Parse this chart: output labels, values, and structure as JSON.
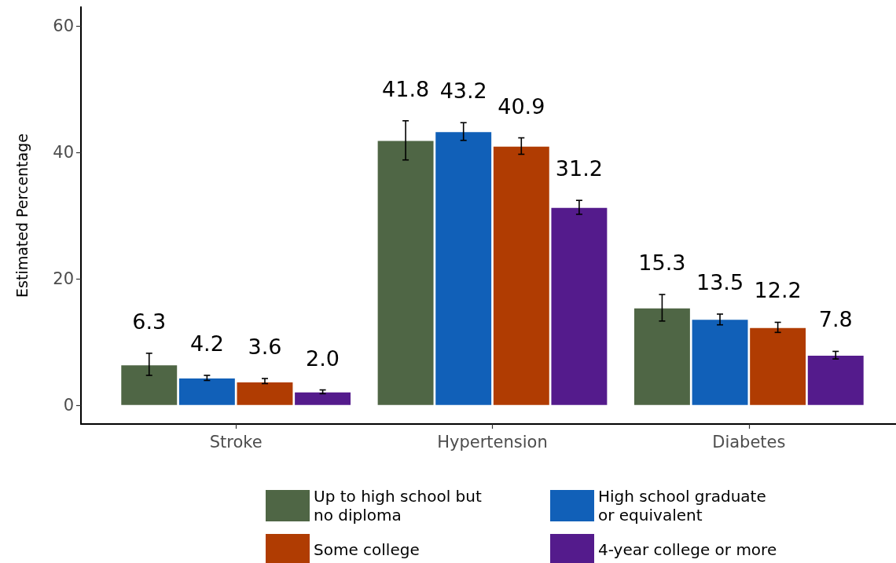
{
  "chart_data": {
    "type": "bar",
    "ylabel": "Estimated Percentage",
    "categories": [
      "Stroke",
      "Hypertension",
      "Diabetes"
    ],
    "series": [
      {
        "name": "Up to high school but no diploma",
        "color": "#4f6645",
        "values": [
          6.3,
          41.8,
          15.3
        ],
        "errors": [
          [
            4.7,
            8.2
          ],
          [
            38.8,
            45.0
          ],
          [
            13.3,
            17.5
          ]
        ],
        "value_labels": [
          "6.3",
          "41.8",
          "15.3"
        ]
      },
      {
        "name": "High school graduate or equivalent",
        "color": "#1160b8",
        "values": [
          4.2,
          43.2,
          13.5
        ],
        "errors": [
          [
            3.9,
            4.7
          ],
          [
            41.9,
            44.7
          ],
          [
            12.7,
            14.4
          ]
        ],
        "value_labels": [
          "4.2",
          "43.2",
          "13.5"
        ]
      },
      {
        "name": "Some college",
        "color": "#b03c02",
        "values": [
          3.6,
          40.9,
          12.2
        ],
        "errors": [
          [
            3.4,
            4.2
          ],
          [
            39.7,
            42.3
          ],
          [
            11.5,
            13.1
          ]
        ],
        "value_labels": [
          "3.6",
          "40.9",
          "12.2"
        ]
      },
      {
        "name": "4-year college or more",
        "color": "#541b8c",
        "values": [
          2.0,
          31.2,
          7.8
        ],
        "errors": [
          [
            1.8,
            2.4
          ],
          [
            30.2,
            32.4
          ],
          [
            7.3,
            8.5
          ]
        ],
        "value_labels": [
          "2.0",
          "31.2",
          "7.8"
        ]
      }
    ],
    "ylim": [
      -3,
      63
    ],
    "yticks": [
      0,
      20,
      40,
      60
    ],
    "legend": "bottom"
  }
}
